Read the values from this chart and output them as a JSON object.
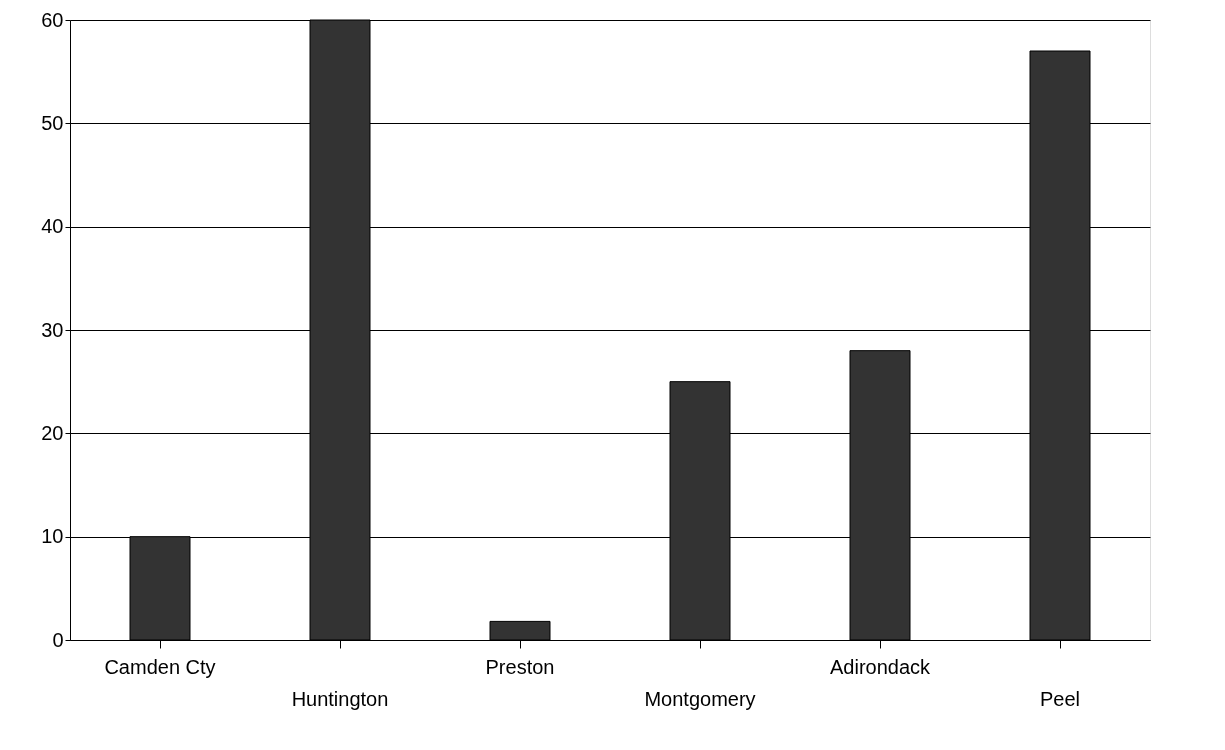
{
  "chart_data": {
    "type": "bar",
    "categories": [
      "Camden Cty",
      "Huntington",
      "Preston",
      "Montgomery",
      "Adirondack",
      "Peel"
    ],
    "values": [
      10,
      60,
      1.8,
      25,
      28,
      57
    ],
    "color": "#333333",
    "ylim": [
      0,
      60
    ],
    "yticks": [
      0,
      10,
      20,
      30,
      40,
      50,
      60
    ],
    "grid": "y"
  }
}
